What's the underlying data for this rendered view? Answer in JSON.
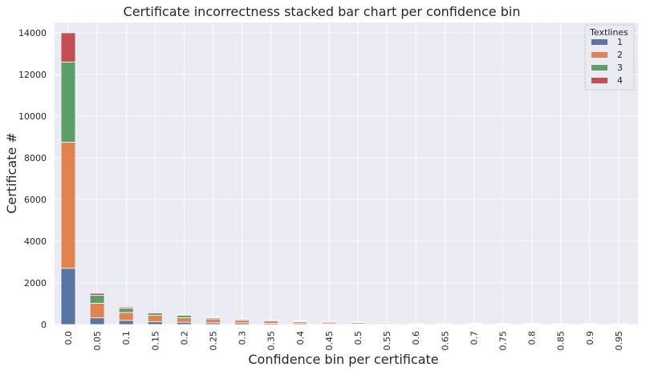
{
  "chart_data": {
    "type": "bar",
    "stacked": true,
    "title": "Certificate incorrectness stacked bar chart per confidence bin",
    "xlabel": "Confidence bin per certificate",
    "ylabel": "Certificate #",
    "ylim": [
      0,
      14500
    ],
    "yticks": [
      "0",
      "2000",
      "4000",
      "6000",
      "8000",
      "10000",
      "12000",
      "14000"
    ],
    "ytick_values": [
      0,
      2000,
      4000,
      6000,
      8000,
      10000,
      12000,
      14000
    ],
    "grid": true,
    "legend": {
      "title": "Textlines",
      "placement": "top-right"
    },
    "categories": [
      "0.0",
      "0.05",
      "0.1",
      "0.15",
      "0.2",
      "0.25",
      "0.3",
      "0.35",
      "0.4",
      "0.45",
      "0.5",
      "0.55",
      "0.6",
      "0.65",
      "0.7",
      "0.75",
      "0.8",
      "0.85",
      "0.9",
      "0.95"
    ],
    "series": [
      {
        "name": "1",
        "color": "#5975a4",
        "values": [
          2700,
          320,
          200,
          140,
          110,
          80,
          80,
          60,
          50,
          40,
          35,
          30,
          25,
          25,
          20,
          20,
          20,
          20,
          20,
          15
        ]
      },
      {
        "name": "2",
        "color": "#e1834f",
        "values": [
          6050,
          700,
          380,
          300,
          220,
          190,
          130,
          120,
          80,
          70,
          60,
          50,
          40,
          40,
          30,
          30,
          25,
          25,
          20,
          15
        ]
      },
      {
        "name": "3",
        "color": "#5b9e6a",
        "values": [
          3850,
          380,
          200,
          120,
          120,
          60,
          50,
          40,
          30,
          25,
          20,
          15,
          12,
          10,
          10,
          8,
          8,
          8,
          5,
          5
        ]
      },
      {
        "name": "4",
        "color": "#c44e52",
        "values": [
          1400,
          100,
          60,
          40,
          30,
          20,
          15,
          12,
          10,
          8,
          5,
          5,
          5,
          5,
          5,
          5,
          5,
          5,
          5,
          5
        ]
      }
    ]
  }
}
